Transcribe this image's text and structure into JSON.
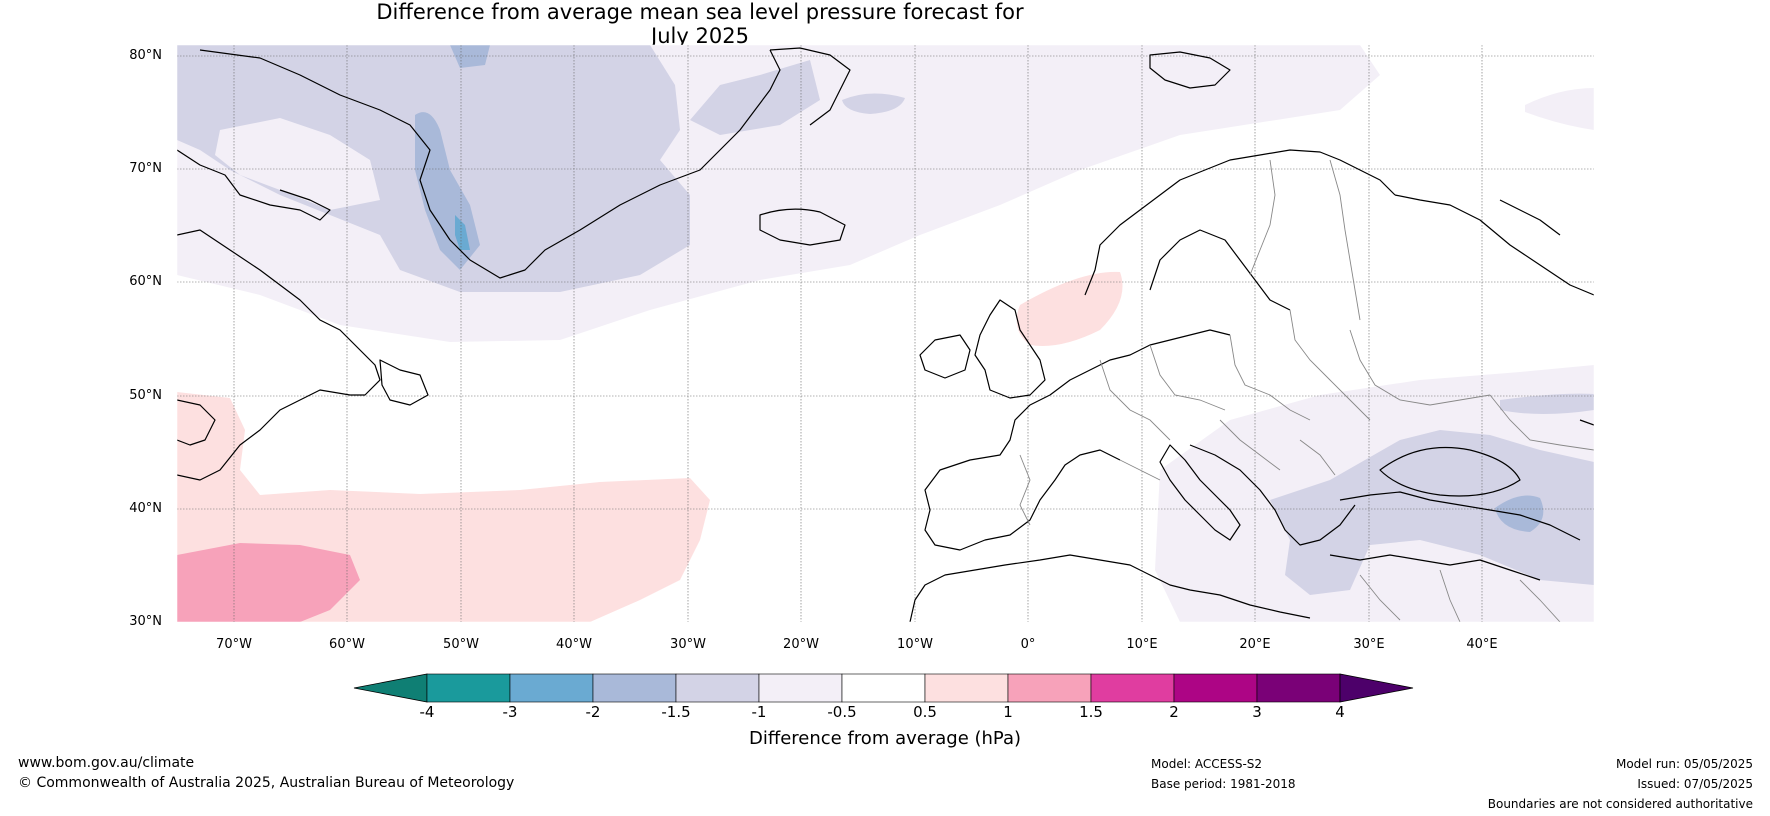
{
  "title": {
    "line1": "Difference from average mean sea level pressure forecast for",
    "line2": "July 2025"
  },
  "latitudes": [
    "80°N",
    "70°N",
    "60°N",
    "50°N",
    "40°N",
    "30°N"
  ],
  "longitudes": [
    "70°W",
    "60°W",
    "50°W",
    "40°W",
    "30°W",
    "20°W",
    "10°W",
    "0°",
    "10°E",
    "20°E",
    "30°E",
    "40°E"
  ],
  "colorbar": {
    "ticks": [
      "-4",
      "-3",
      "-2",
      "-1.5",
      "-1",
      "-0.5",
      "0.5",
      "1",
      "1.5",
      "2",
      "3",
      "4"
    ],
    "colors": [
      "#0f7f74",
      "#1a9a9c",
      "#6aaad2",
      "#a9b9d9",
      "#d3d3e6",
      "#f3eff7",
      "#ffffff",
      "#fde0e0",
      "#f7a2ba",
      "#e03da0",
      "#ad0585",
      "#7a0177",
      "#4d006a"
    ],
    "label": "Difference from average (hPa)"
  },
  "footer": {
    "website": "www.bom.gov.au/climate",
    "copyright": "© Commonwealth of Australia 2025, Australian Bureau of Meteorology",
    "model": "Model: ACCESS-S2",
    "base_period": "Base period: 1981-2018",
    "model_run": "Model run: 05/05/2025",
    "issued": "Issued: 07/05/2025",
    "disclaimer": "Boundaries are not considered authoritative"
  }
}
